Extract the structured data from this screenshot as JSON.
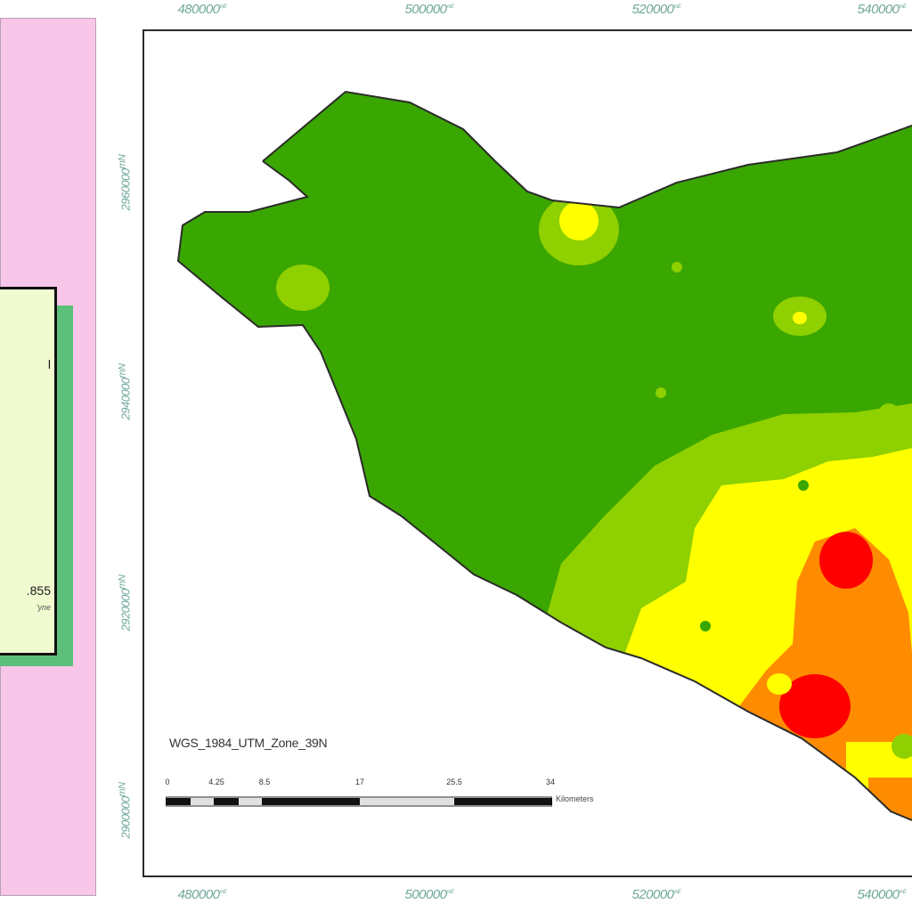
{
  "map": {
    "projection_label": "WGS_1984_UTM_Zone_39N",
    "x_ticks": [
      {
        "label": "480000",
        "sup": "mE"
      },
      {
        "label": "500000",
        "sup": "mE"
      },
      {
        "label": "520000",
        "sup": "mE"
      },
      {
        "label": "540000",
        "sup": "mE"
      }
    ],
    "y_ticks": [
      {
        "label": "2960000",
        "sup": "mN"
      },
      {
        "label": "2940000",
        "sup": "mN"
      },
      {
        "label": "2920000",
        "sup": "mN"
      },
      {
        "label": "2900000",
        "sup": "mN"
      }
    ],
    "scale_bar": {
      "labels": [
        "0",
        "4.25",
        "8.5",
        "17",
        "25.5",
        "34"
      ],
      "unit": "Kilometers"
    },
    "colors": {
      "dark_green": "#3aa600",
      "light_green": "#8fd000",
      "yellow": "#ffff00",
      "orange": "#ff8c00",
      "red": "#ff0000",
      "side_panel": "#f8c6e8",
      "legend_bg": "#f1fbd0",
      "legend_shadow": "#5cc07a",
      "tick_color": "#6fa89b"
    }
  },
  "legend": {
    "value_partial": "855",
    "top_partial": "l",
    "sub_partial": "'yne"
  }
}
